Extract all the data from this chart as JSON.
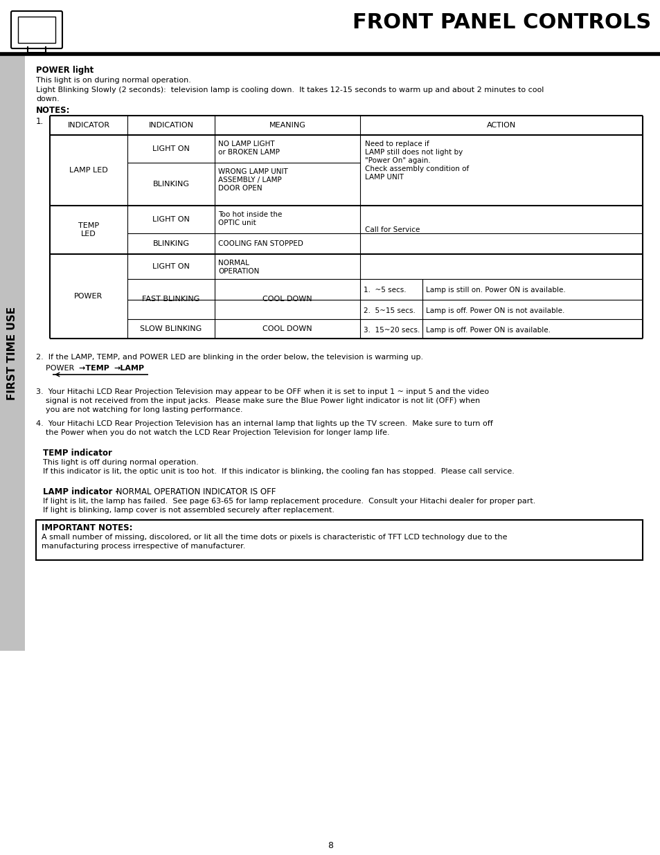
{
  "title": "FRONT PANEL CONTROLS",
  "page_num": "8",
  "sidebar_text": "FIRST TIME USE",
  "power_light_bold": "POWER light",
  "power_light_text1": "This light is on during normal operation.",
  "power_light_text2": "Light Blinking Slowly (2 seconds):  television lamp is cooling down.  It takes 12-15 seconds to warm up and about 2 minutes to cool down.",
  "notes_bold": "NOTES:",
  "note2_line1": "2.  If the LAMP, TEMP, and POWER LED are blinking in the order below, the television is warming up.",
  "note3_lines": "3.  Your Hitachi LCD Rear Projection Television may appear to be OFF when it is set to input 1 ~ input 5 and the video\n    signal is not received from the input jacks.  Please make sure the Blue Power light indicator is not lit (OFF) when\n    you are not watching for long lasting performance.",
  "note4_lines": "4.  Your Hitachi LCD Rear Projection Television has an internal lamp that lights up the TV screen.  Make sure to turn off\n    the Power when you do not watch the LCD Rear Projection Television for longer lamp life.",
  "temp_indicator_bold": "TEMP indicator",
  "temp_indicator_text1": "This light is off during normal operation.",
  "temp_indicator_text2": "If this indicator is lit, the optic unit is too hot.  If this indicator is blinking, the cooling fan has stopped.  Please call service.",
  "lamp_indicator_bold": "LAMP indicator -",
  "lamp_indicator_caps": " NORMAL OPERATION INDICATOR IS OFF",
  "lamp_indicator_text1": "If light is lit, the lamp has failed.  See page 63-65 for lamp replacement procedure.  Consult your Hitachi dealer for proper part.",
  "lamp_indicator_text2": "If light is blinking, lamp cover is not assembled securely after replacement.",
  "important_bold": "IMPORTANT NOTES:",
  "important_text": "A small number of missing, discolored, or lit all the time dots or pixels is characteristic of TFT LCD technology due to the\nmanufacturing process irrespective of manufacturer.",
  "bg_color": "#ffffff",
  "text_color": "#000000",
  "sidebar_color": "#c0c0c0"
}
